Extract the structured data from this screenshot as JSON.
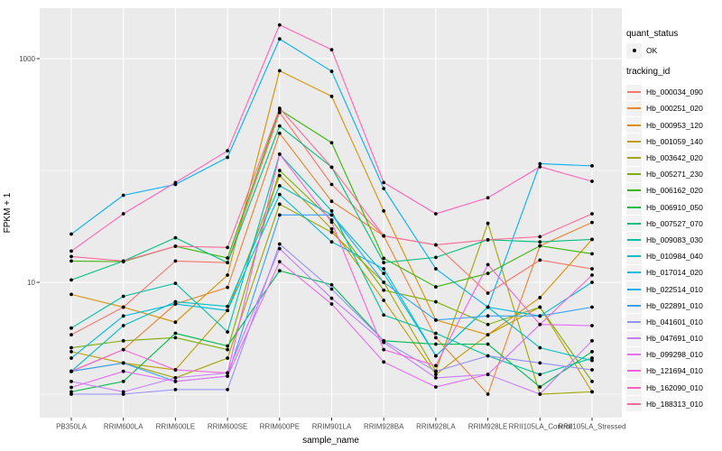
{
  "figure": {
    "ylabel": "FPKM + 1",
    "xlabel": "sample_name"
  },
  "legend": {
    "quant_status": {
      "title": "quant_status",
      "items": [
        {
          "label": "OK",
          "symbol": "point",
          "color": "#000000"
        }
      ]
    },
    "tracking_id": {
      "title": "tracking_id"
    }
  },
  "colors": {
    "panel_bg": "#EBEBEB",
    "grid": "#FFFFFF",
    "tick": "#333333",
    "tick_label": "#4D4D4D",
    "point": "#000000",
    "legend_key_bg": "#F2F2F2"
  },
  "chart_data": {
    "type": "line",
    "title": "",
    "xlabel": "sample_name",
    "ylabel": "FPKM + 1",
    "yscale": "log10",
    "ylim": [
      1,
      2200
    ],
    "grid": true,
    "legend_position": "right",
    "marker": "point",
    "quant_status": "OK",
    "categories": [
      "PB350LA",
      "RRIM600LA",
      "RRIM600LE",
      "RRIM600SE",
      "RRIM600PE",
      "RRIM901LA",
      "RRIM928BA",
      "RRIM928LA",
      "RRIM928LE",
      "RRII105LA_Control",
      "RRII105LA_Stressed"
    ],
    "yticks": [
      {
        "v": 10,
        "label": "10"
      },
      {
        "v": 1000,
        "label": "1000"
      }
    ],
    "yminor": [
      1,
      100
    ],
    "series": [
      {
        "name": "Hb_000034_090",
        "color": "#F8766D",
        "values": [
          3.4,
          6.0,
          15.5,
          15.0,
          330,
          75,
          26,
          21.6,
          8.0,
          15.8,
          13.2
        ]
      },
      {
        "name": "Hb_000251_020",
        "color": "#EA8331",
        "values": [
          1.6,
          2.5,
          6.4,
          9.0,
          215,
          53,
          26,
          3.2,
          1.0,
          21.2,
          34.3
        ]
      },
      {
        "name": "Hb_000953_120",
        "color": "#D89000",
        "values": [
          7.8,
          6.0,
          4.4,
          11.6,
          780,
          460,
          43.5,
          4.6,
          3.4,
          7.3,
          24.2
        ]
      },
      {
        "name": "Hb_001059_140",
        "color": "#C09B00",
        "values": [
          2.4,
          1.9,
          1.65,
          5.6,
          90,
          30,
          6.9,
          1.5,
          3.4,
          6.0,
          1.05
        ]
      },
      {
        "name": "Hb_003642_020",
        "color": "#A3A500",
        "values": [
          1.6,
          1.9,
          1.4,
          2.1,
          50,
          28,
          10,
          1.6,
          33.7,
          1.0,
          1.05
        ]
      },
      {
        "name": "Hb_005271_230",
        "color": "#7CAE00",
        "values": [
          2.6,
          3.0,
          3.2,
          2.5,
          100,
          36,
          8.5,
          6.7,
          4.2,
          6.0,
          1.3
        ]
      },
      {
        "name": "Hb_006162_020",
        "color": "#39B600",
        "values": [
          15.5,
          15.3,
          21,
          16.5,
          350,
          177,
          16.4,
          9.1,
          12,
          21.2,
          18
        ]
      },
      {
        "name": "Hb_006910_050",
        "color": "#00BB4E",
        "values": [
          1.05,
          1.3,
          3.5,
          2.7,
          12.7,
          9.5,
          3.0,
          2.8,
          2.8,
          1.16,
          2.4
        ]
      },
      {
        "name": "Hb_007527_070",
        "color": "#00BF7D",
        "values": [
          10.5,
          15.5,
          25,
          15,
          250,
          107,
          15,
          16.7,
          24,
          23,
          24.2
        ]
      },
      {
        "name": "Hb_009083_030",
        "color": "#00C1A3",
        "values": [
          3.9,
          7.5,
          9.8,
          3.6,
          140,
          43.5,
          5.1,
          3.5,
          2.2,
          1.5,
          2.1
        ]
      },
      {
        "name": "Hb_010984_040",
        "color": "#00BFC4",
        "values": [
          1.6,
          4.1,
          6.7,
          6.1,
          73,
          40,
          12,
          2.2,
          6.0,
          2.6,
          2.0
        ]
      },
      {
        "name": "Hb_017014_020",
        "color": "#00BAE0",
        "values": [
          2.1,
          5.0,
          6.4,
          5.6,
          61,
          23,
          13.2,
          2.2,
          6.0,
          5.0,
          10.0
        ]
      },
      {
        "name": "Hb_022514_010",
        "color": "#00B0F6",
        "values": [
          27,
          60,
          75,
          131,
          1500,
          770,
          69,
          13.2,
          6.0,
          115,
          110
        ]
      },
      {
        "name": "Hb_022891_010",
        "color": "#35A2FF",
        "values": [
          1.6,
          1.9,
          1.3,
          1.45,
          40,
          40,
          10,
          4.6,
          5.0,
          5.0,
          6.0
        ]
      },
      {
        "name": "Hb_041601_010",
        "color": "#9590FF",
        "values": [
          1.0,
          1.0,
          1.1,
          1.1,
          22,
          8.7,
          3.0,
          1.6,
          2.2,
          1.9,
          1.65
        ]
      },
      {
        "name": "Hb_047691_010",
        "color": "#C77CFF",
        "values": [
          1.3,
          1.05,
          1.4,
          1.55,
          20,
          7.2,
          2.9,
          1.4,
          1.5,
          1.0,
          3.0
        ]
      },
      {
        "name": "Hb_099298_010",
        "color": "#E76BF3",
        "values": [
          1.15,
          1.6,
          1.3,
          1.45,
          15.3,
          6.4,
          1.94,
          1.16,
          1.5,
          4.2,
          4.1
        ]
      },
      {
        "name": "Hb_121694_010",
        "color": "#FA62DB",
        "values": [
          1.6,
          2.5,
          1.65,
          1.55,
          140,
          34.5,
          2.5,
          1.8,
          14.4,
          4.2,
          11.6
        ]
      },
      {
        "name": "Hb_162090_010",
        "color": "#FF62BC",
        "values": [
          19,
          41,
          78,
          150,
          2000,
          1200,
          78,
          41,
          57,
          108,
          80
        ]
      },
      {
        "name": "Hb_188313_010",
        "color": "#FF6A98",
        "values": [
          17,
          15.5,
          21,
          20.5,
          360,
          107,
          26,
          21.6,
          24,
          25.6,
          41
        ]
      }
    ]
  }
}
